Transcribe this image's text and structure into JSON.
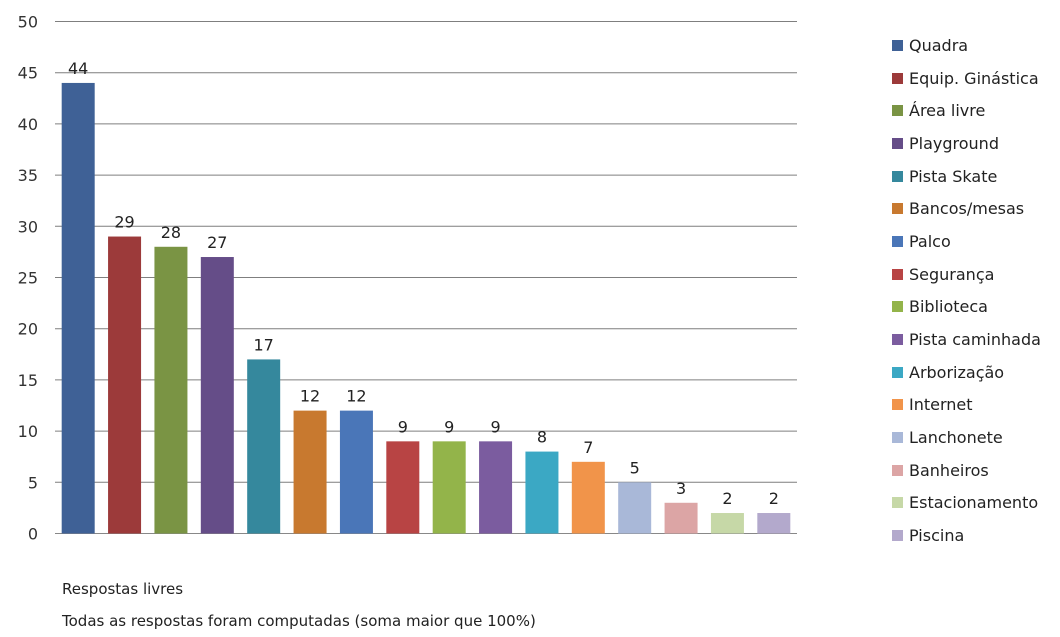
{
  "chart_data": {
    "type": "bar",
    "categories": [
      "Quadra",
      "Equip. Ginástica",
      "Área livre",
      "Playground",
      "Pista Skate",
      "Bancos/mesas",
      "Palco",
      "Segurança",
      "Biblioteca",
      "Pista caminhada",
      "Arborização",
      "Internet",
      "Lanchonete",
      "Banheiros",
      "Estacionamento",
      "Piscina"
    ],
    "values": [
      44,
      29,
      28,
      27,
      17,
      12,
      12,
      9,
      9,
      9,
      8,
      7,
      5,
      3,
      2,
      2
    ],
    "colors": [
      "#3f6196",
      "#9c3a3a",
      "#7a9444",
      "#654d88",
      "#35889d",
      "#c8792f",
      "#4a76b8",
      "#b84444",
      "#93b44a",
      "#7b5c9f",
      "#3ba8c4",
      "#f1944a",
      "#a9b8d8",
      "#dca5a5",
      "#c6d8a7",
      "#b3a9cc"
    ],
    "ylim": [
      0,
      50
    ],
    "yticks": [
      0,
      5,
      10,
      15,
      20,
      25,
      30,
      35,
      40,
      45,
      50
    ],
    "grid": true,
    "legend_position": "right",
    "show_data_labels": true
  },
  "notes": {
    "line1": "Respostas livres",
    "line2": "Todas as respostas foram computadas (soma maior que 100%)"
  }
}
